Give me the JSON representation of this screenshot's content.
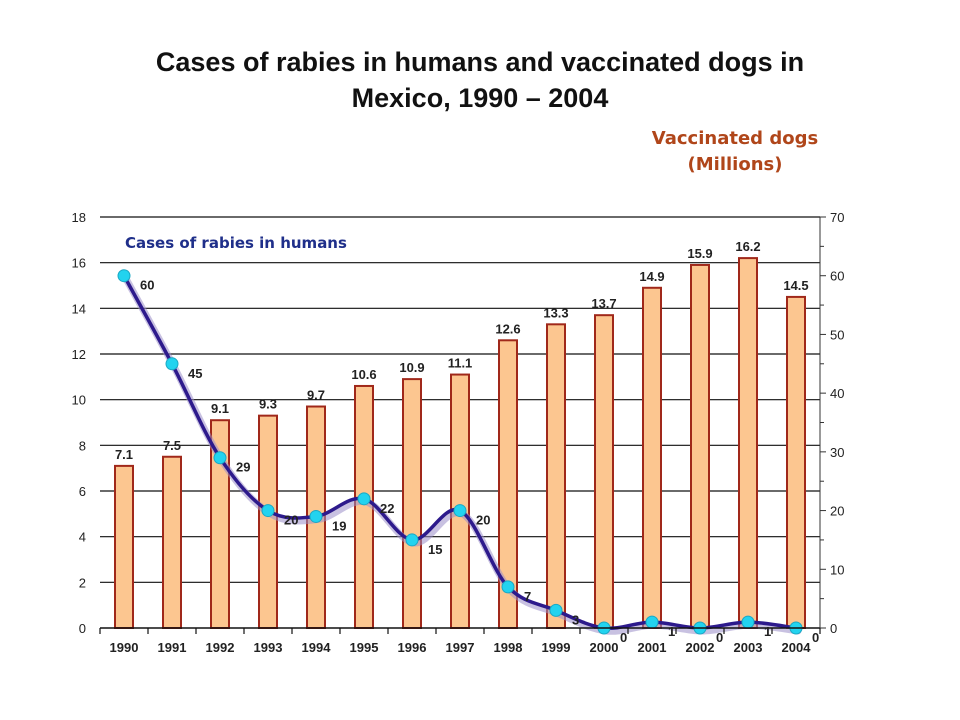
{
  "chart_data": {
    "type": "bar",
    "title_line1": "Cases of rabies in humans and vaccinated dogs in",
    "title_line2": "Mexico, 1990 – 2004",
    "right_axis_label_line1": "Vaccinated dogs",
    "right_axis_label_line2": "(Millions)",
    "categories": [
      "1990",
      "1991",
      "1992",
      "1993",
      "1994",
      "1995",
      "1996",
      "1997",
      "1998",
      "1999",
      "2000",
      "2001",
      "2002",
      "2003",
      "2004"
    ],
    "series": [
      {
        "type": "bar",
        "axis": "left",
        "values": [
          7.1,
          7.5,
          9.1,
          9.3,
          9.7,
          10.6,
          10.9,
          11.1,
          12.6,
          13.3,
          13.7,
          14.9,
          15.9,
          16.2,
          14.5
        ],
        "labels": [
          "7.1",
          "7.5",
          "9.1",
          "9.3",
          "9.7",
          "10.6",
          "10.9",
          "11.1",
          "12.6",
          "13.3",
          "13.7",
          "14.9",
          "15.9",
          "16.2",
          "14.5"
        ],
        "color": "#fcc690",
        "edge_color": "#a0281a"
      },
      {
        "type": "line",
        "axis": "right",
        "name": "Cases of rabies in humans",
        "values": [
          60,
          45,
          29,
          20,
          19,
          22,
          15,
          20,
          7,
          3,
          0,
          1,
          0,
          1,
          0
        ],
        "labels": [
          "60",
          "45",
          "29",
          "20",
          "19",
          "22",
          "15",
          "20",
          "7",
          "3",
          "0",
          "1",
          "0",
          "1",
          "0"
        ],
        "color": "#2d1a8c",
        "marker_color": "#22d3ef"
      }
    ],
    "left_ylim": [
      0,
      18
    ],
    "left_ticks": [
      "0",
      "2",
      "4",
      "6",
      "8",
      "10",
      "12",
      "14",
      "16",
      "18"
    ],
    "right_ylim": [
      0,
      70
    ],
    "right_ticks": [
      "0",
      "10",
      "20",
      "30",
      "40",
      "50",
      "60",
      "70"
    ],
    "grid": "horizontal"
  }
}
